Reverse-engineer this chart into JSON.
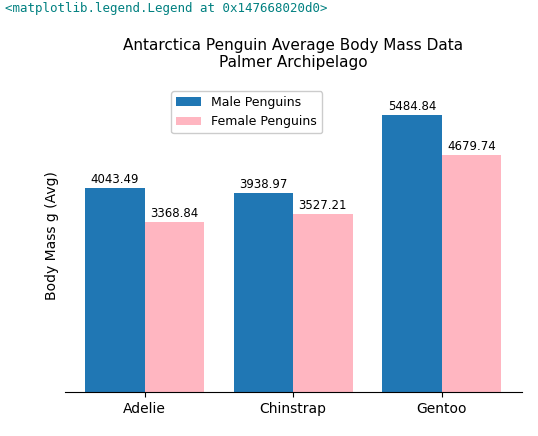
{
  "title": "Antarctica Penguin Average Body Mass Data\nPalmer Archipelago",
  "xlabel": "",
  "ylabel": "Body Mass g (Avg)",
  "categories": [
    "Adelie",
    "Chinstrap",
    "Gentoo"
  ],
  "male_values": [
    4043.49,
    3938.97,
    5484.84
  ],
  "female_values": [
    3368.84,
    3527.21,
    4679.74
  ],
  "male_color": "#2077B4",
  "female_color": "#FFB6C1",
  "male_label": "Male Penguins",
  "female_label": "Female Penguins",
  "bar_width": 0.4,
  "legend_loc": "upper center",
  "title_fontsize": 11,
  "label_fontsize": 10,
  "tick_fontsize": 10,
  "annotation_fontsize": 8.5,
  "figsize": [
    5.38,
    4.36
  ],
  "dpi": 100,
  "suptitle": "<matplotlib.legend.Legend at 0x147668020d0>",
  "suptitle_fontsize": 9,
  "ylim": [
    0,
    6200
  ]
}
